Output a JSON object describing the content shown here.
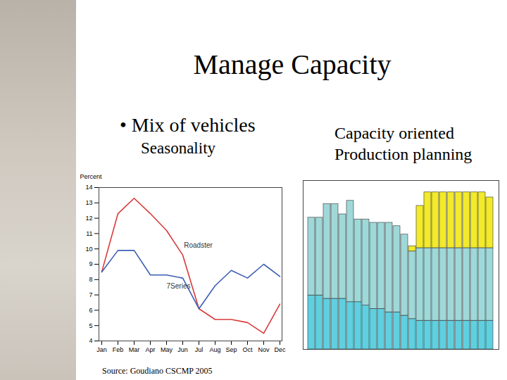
{
  "slide": {
    "title": "Manage Capacity",
    "bullet": "• Mix of vehicles",
    "source": "Source: Goudiano CSCMP 2005"
  },
  "chart_data": [
    {
      "type": "line",
      "title": "Seasonality",
      "ylabel": "Percent",
      "categories": [
        "Jan",
        "Feb",
        "Mar",
        "Apr",
        "May",
        "Jun",
        "Jul",
        "Aug",
        "Sep",
        "Oct",
        "Nov",
        "Dec"
      ],
      "series": [
        {
          "name": "Roadster",
          "color": "#d93a3a",
          "values": [
            8.5,
            12.3,
            13.3,
            12.3,
            11.2,
            9.6,
            6.1,
            5.4,
            5.4,
            5.2,
            4.5,
            6.4
          ]
        },
        {
          "name": "7Series",
          "color": "#3b5fb5",
          "values": [
            8.5,
            9.9,
            9.9,
            8.3,
            8.3,
            8.1,
            6.1,
            7.6,
            8.6,
            8.1,
            9.0,
            8.2
          ]
        }
      ],
      "ylim": [
        4,
        14
      ],
      "yticks": [
        4,
        5,
        6,
        7,
        8,
        9,
        10,
        11,
        12,
        13,
        14
      ],
      "grid": false
    },
    {
      "type": "bar",
      "title": "Capacity oriented Production planning",
      "stacked": true,
      "tick_labels": false,
      "categories": [
        null,
        null,
        null,
        null,
        null,
        null,
        null,
        null,
        null,
        null,
        null,
        null,
        null,
        null,
        null,
        null,
        null,
        null,
        null,
        null,
        null,
        null,
        null,
        null
      ],
      "series": [
        {
          "color": "#5fd0e0",
          "values": [
            32,
            32,
            30,
            30,
            30,
            28,
            28,
            26,
            24,
            24,
            22,
            22,
            20,
            18,
            17,
            17,
            17,
            17,
            17,
            17,
            17,
            17,
            17,
            17
          ]
        },
        {
          "color": "#9fd8d8",
          "values": [
            46,
            46,
            56,
            56,
            50,
            60,
            49,
            51,
            51,
            51,
            53,
            51,
            48,
            40,
            43,
            43,
            43,
            43,
            43,
            43,
            43,
            43,
            43,
            43
          ]
        },
        {
          "color": "#f2ea2a",
          "values": [
            0,
            0,
            0,
            0,
            0,
            0,
            0,
            0,
            0,
            0,
            0,
            0,
            0,
            3,
            25,
            33,
            33,
            33,
            33,
            33,
            33,
            33,
            33,
            30
          ]
        }
      ],
      "ylim": [
        0,
        100
      ]
    }
  ]
}
